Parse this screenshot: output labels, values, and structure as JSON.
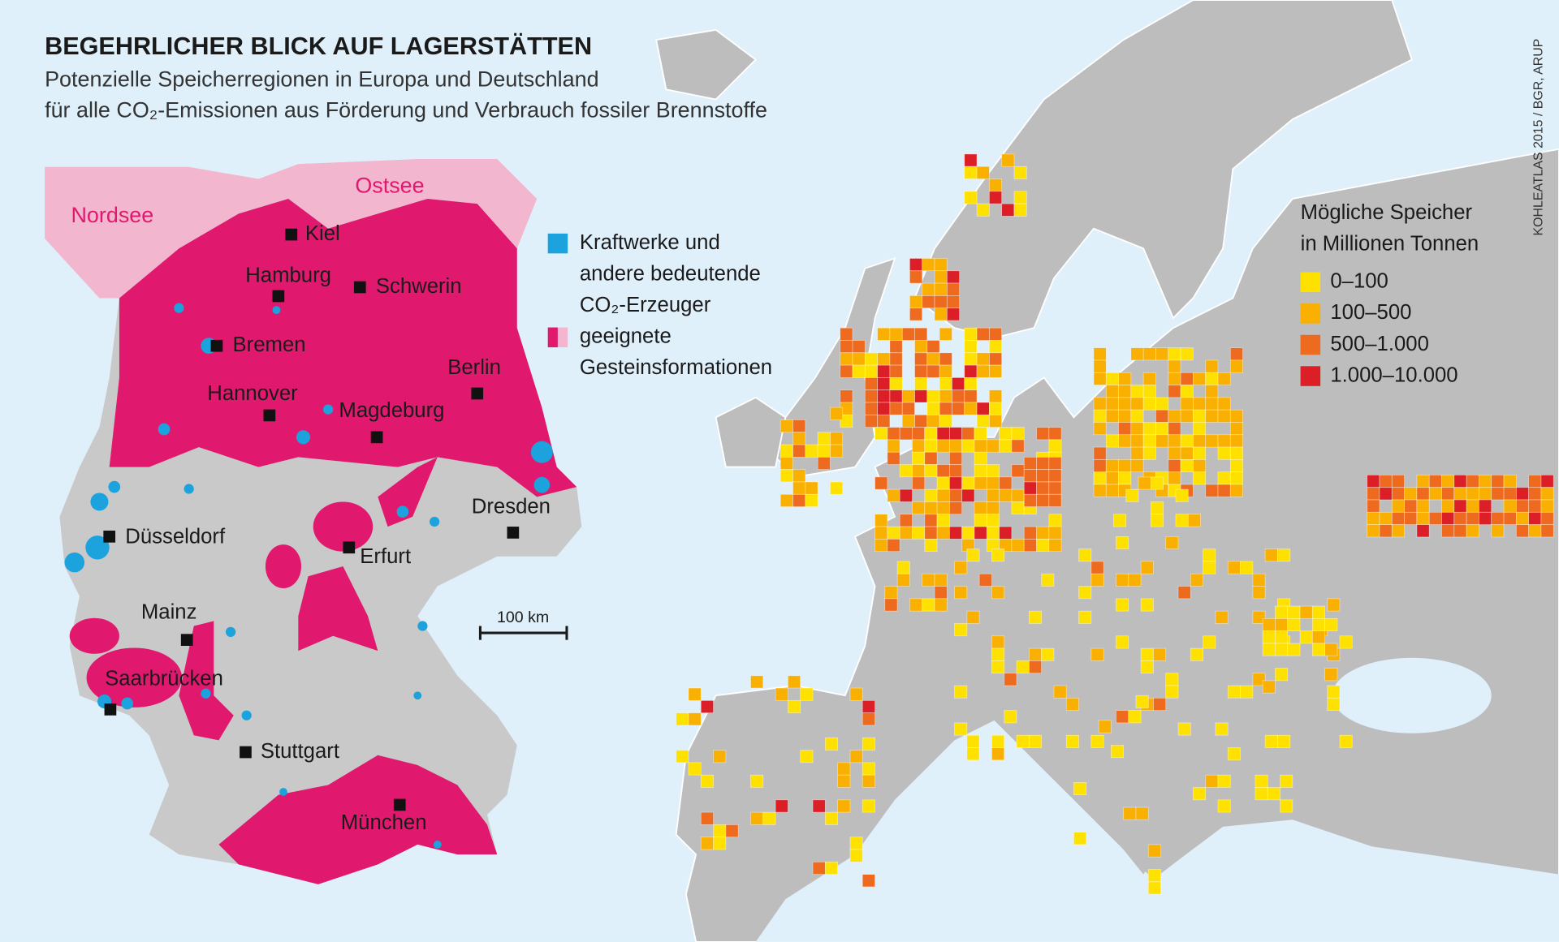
{
  "header": {
    "title": "BEGEHRLICHER BLICK AUF LAGERSTÄTTEN",
    "subtitle": [
      "Potenzielle Speicherregionen in Europa und Deutschland",
      "für alle CO₂-Emissionen aus Förderung und Verbrauch fossiler Brennstoffe"
    ],
    "source": "KOHLEATLAS 2015 / BGR, ARUP"
  },
  "germany_map": {
    "seas": [
      "Nordsee",
      "Ostsee"
    ],
    "cities": [
      "Kiel",
      "Hamburg",
      "Schwerin",
      "Bremen",
      "Berlin",
      "Hannover",
      "Magdeburg",
      "Düsseldorf",
      "Dresden",
      "Erfurt",
      "Mainz",
      "Saarbrücken",
      "Stuttgart",
      "München"
    ],
    "legend": [
      {
        "label": [
          "Kraftwerke und",
          "andere bedeutende",
          "CO₂-Erzeuger"
        ],
        "color": "#1ca3dd"
      },
      {
        "label": [
          "geeignete",
          "Gesteinsformationen"
        ],
        "color": "#e0196e"
      }
    ],
    "scale_label": "100 km"
  },
  "europe_map": {
    "legend": {
      "title": [
        "Mögliche Speicher",
        "in Millionen Tonnen"
      ],
      "items": [
        {
          "label": "0–100",
          "color": "#ffe100"
        },
        {
          "label": "100–500",
          "color": "#f9b000"
        },
        {
          "label": "500–1.000",
          "color": "#ee6a1f"
        },
        {
          "label": "1.000–10.000",
          "color": "#dc1f26"
        }
      ]
    }
  }
}
